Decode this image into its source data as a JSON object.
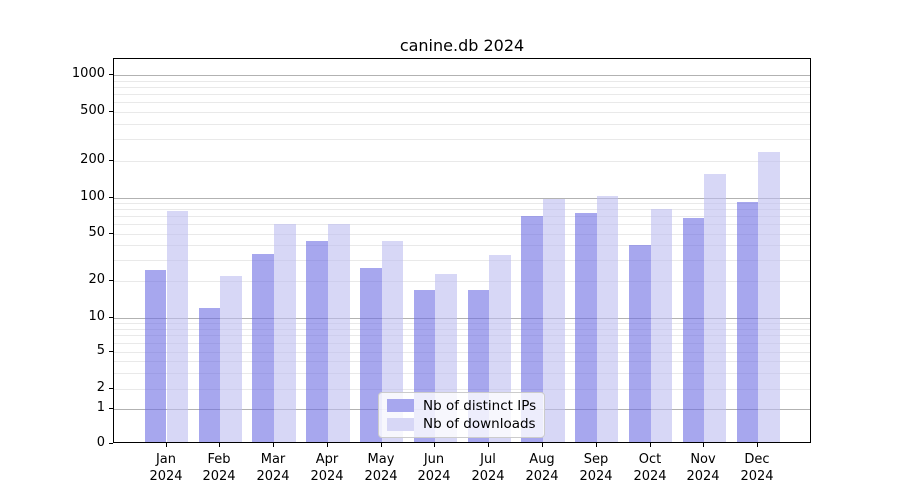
{
  "title": "canine.db 2024",
  "chart_data": {
    "type": "bar",
    "title": "canine.db 2024",
    "categories": [
      "Jan",
      "Feb",
      "Mar",
      "Apr",
      "May",
      "Jun",
      "Jul",
      "Aug",
      "Sep",
      "Oct",
      "Nov",
      "Dec"
    ],
    "x_year_label": "2024",
    "series": [
      {
        "name": "Nb of distinct IPs",
        "color": "rgba(108,108,227,0.6)",
        "solid_color": "#a7a7ee",
        "values": [
          25,
          12,
          34,
          44,
          26,
          17,
          17,
          70,
          75,
          40,
          68,
          92
        ]
      },
      {
        "name": "Nb of downloads",
        "color": "rgba(188,188,240,0.6)",
        "solid_color": "#d7d7f6",
        "values": [
          78,
          22,
          61,
          60,
          44,
          23,
          33,
          98,
          102,
          80,
          155,
          235
        ]
      }
    ],
    "yscale": "symlog",
    "yticks": [
      0,
      1,
      2,
      5,
      10,
      20,
      50,
      100,
      200,
      500,
      1000
    ],
    "ylim": [
      0,
      1350
    ],
    "xlabel": "",
    "ylabel": "",
    "grid": true,
    "legend_position": "lower center inside axes"
  },
  "colors": {
    "major_grid": "#b2b2b2",
    "minor_grid": "#e9e9e9",
    "axis": "#000000"
  }
}
